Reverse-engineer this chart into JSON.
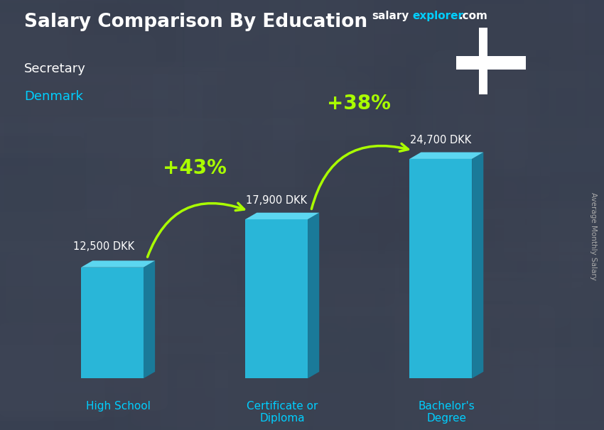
{
  "title": "Salary Comparison By Education",
  "subtitle1": "Secretary",
  "subtitle2": "Denmark",
  "categories": [
    "High School",
    "Certificate or\nDiploma",
    "Bachelor's\nDegree"
  ],
  "values": [
    12500,
    17900,
    24700
  ],
  "value_labels": [
    "12,500 DKK",
    "17,900 DKK",
    "24,700 DKK"
  ],
  "pct_labels": [
    "+43%",
    "+38%"
  ],
  "bar_face_color": "#29b6d8",
  "bar_side_color": "#1a7a99",
  "bar_top_color": "#5cd6f0",
  "ylabel": "Average Monthly Salary",
  "website_salary": "salary",
  "website_explorer": "explorer",
  "website_dot_com": ".com",
  "title_color": "#ffffff",
  "subtitle1_color": "#ffffff",
  "subtitle2_color": "#00cfff",
  "label_color": "#ffffff",
  "pct_color": "#aaff00",
  "arrow_color": "#aaff00",
  "bg_color": "#4a5568",
  "bar_width": 0.38,
  "ylim": [
    0,
    30000
  ],
  "flag_red": "#c8102e",
  "cat_label_color": "#00cfff"
}
